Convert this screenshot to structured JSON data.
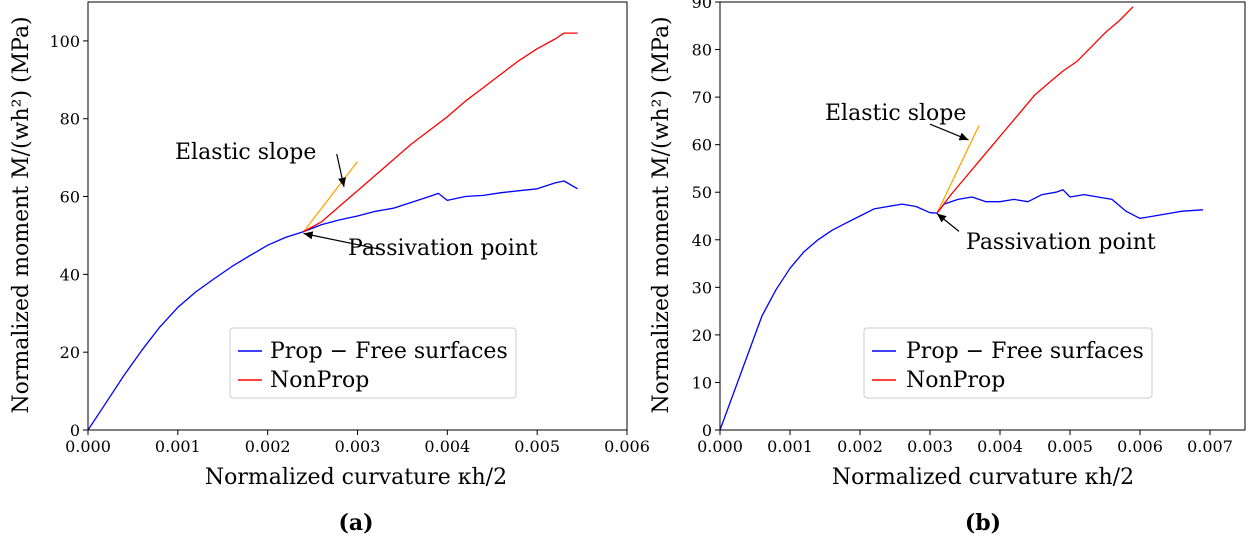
{
  "chart_data": [
    {
      "type": "line",
      "caption": "(a)",
      "xlabel": "Normalized curvature κh/2",
      "ylabel": "Normalized moment M/(wh²) (MPa)",
      "xlim": [
        0,
        0.006
      ],
      "ylim": [
        0,
        110
      ],
      "xticks": [
        0.0,
        0.001,
        0.002,
        0.003,
        0.004,
        0.005,
        0.006
      ],
      "xtick_labels": [
        "0.000",
        "0.001",
        "0.002",
        "0.003",
        "0.004",
        "0.005",
        "0.006"
      ],
      "yticks": [
        0,
        20,
        40,
        60,
        80,
        100
      ],
      "ytick_labels": [
        "0",
        "20",
        "40",
        "60",
        "80",
        "100"
      ],
      "grid": false,
      "legend_position": "lower-right",
      "series": [
        {
          "name": "Prop − Free surfaces",
          "color": "#0000ff",
          "x": [
            0,
            0.0002,
            0.0004,
            0.0006,
            0.0008,
            0.001,
            0.0012,
            0.0014,
            0.0016,
            0.0018,
            0.002,
            0.0022,
            0.0024,
            0.0026,
            0.0028,
            0.003,
            0.0032,
            0.0034,
            0.0036,
            0.0038,
            0.0039,
            0.004,
            0.0042,
            0.0044,
            0.0046,
            0.0048,
            0.005,
            0.0052,
            0.0053,
            0.00545
          ],
          "y": [
            0,
            7,
            14,
            20.5,
            26.5,
            31.5,
            35.5,
            38.8,
            42,
            44.8,
            47.5,
            49.5,
            51,
            52.8,
            54,
            55,
            56.2,
            57,
            58.5,
            60,
            60.8,
            59,
            60,
            60.3,
            61,
            61.5,
            62,
            63.5,
            64,
            62
          ]
        },
        {
          "name": "NonProp",
          "color": "#ff0000",
          "x": [
            0.0024,
            0.0026,
            0.0028,
            0.003,
            0.0032,
            0.0034,
            0.0036,
            0.0038,
            0.004,
            0.0042,
            0.0044,
            0.0046,
            0.0048,
            0.005,
            0.0052,
            0.0053,
            0.00545
          ],
          "y": [
            51,
            53.5,
            57.5,
            61.5,
            65.5,
            69.5,
            73.5,
            77,
            80.5,
            84.5,
            88,
            91.5,
            95,
            98,
            100.5,
            102,
            102
          ]
        },
        {
          "name": "",
          "color": "#ffa500",
          "x": [
            0.0024,
            0.003
          ],
          "y": [
            51,
            69
          ]
        }
      ],
      "annotations": [
        {
          "text": "Elastic slope",
          "xy": [
            0.00285,
            62.5
          ],
          "xytext": [
            0.0016,
            73
          ]
        },
        {
          "text": "Passivation point",
          "xy": [
            0.0024,
            50.5
          ],
          "xytext": [
            0.0033,
            45
          ]
        }
      ]
    },
    {
      "type": "line",
      "caption": "(b)",
      "xlabel": "Normalized curvature κh/2",
      "ylabel": "Normalized moment M/(wh²) (MPa)",
      "xlim": [
        0,
        0.0075
      ],
      "ylim": [
        0,
        90
      ],
      "xticks": [
        0.0,
        0.001,
        0.002,
        0.003,
        0.004,
        0.005,
        0.006,
        0.007
      ],
      "xtick_labels": [
        "0.000",
        "0.001",
        "0.002",
        "0.003",
        "0.004",
        "0.005",
        "0.006",
        "0.007"
      ],
      "yticks": [
        0,
        10,
        20,
        30,
        40,
        50,
        60,
        70,
        80,
        90
      ],
      "ytick_labels": [
        "0",
        "10",
        "20",
        "30",
        "40",
        "50",
        "60",
        "70",
        "80",
        "90"
      ],
      "grid": false,
      "legend_position": "lower-right",
      "series": [
        {
          "name": "Prop − Free surfaces",
          "color": "#0000ff",
          "x": [
            0,
            0.0002,
            0.0004,
            0.0006,
            0.0008,
            0.001,
            0.0012,
            0.0014,
            0.0016,
            0.0018,
            0.002,
            0.0022,
            0.0024,
            0.0026,
            0.0028,
            0.003,
            0.0031,
            0.0032,
            0.0034,
            0.0036,
            0.0038,
            0.004,
            0.0042,
            0.0044,
            0.0046,
            0.0048,
            0.0049,
            0.005,
            0.0052,
            0.0054,
            0.0056,
            0.0058,
            0.006,
            0.0062,
            0.0064,
            0.0066,
            0.0069
          ],
          "y": [
            0,
            8,
            16,
            24,
            29.5,
            34,
            37.5,
            40,
            42,
            43.5,
            45,
            46.5,
            47,
            47.5,
            47,
            45.7,
            45.6,
            47.5,
            48.5,
            49,
            48,
            48,
            48.5,
            48,
            49.5,
            50,
            50.5,
            49,
            49.5,
            49,
            48.5,
            46,
            44.5,
            45,
            45.5,
            46,
            46.3
          ]
        },
        {
          "name": "NonProp",
          "color": "#ff0000",
          "x": [
            0.0031,
            0.0033,
            0.0035,
            0.0037,
            0.0039,
            0.0041,
            0.0043,
            0.0045,
            0.0047,
            0.0049,
            0.0051,
            0.0053,
            0.0055,
            0.0057,
            0.0059
          ],
          "y": [
            45.6,
            49.5,
            53,
            56.5,
            60,
            63.5,
            67,
            70.5,
            73,
            75.5,
            77.5,
            80.5,
            83.5,
            86,
            89
          ]
        },
        {
          "name": "",
          "color": "#ffa500",
          "x": [
            0.0031,
            0.0037
          ],
          "y": [
            45.6,
            64
          ]
        }
      ],
      "annotations": [
        {
          "text": "Elastic slope",
          "xy": [
            0.00355,
            61
          ],
          "xytext": [
            0.0015,
            66
          ]
        },
        {
          "text": "Passivation point",
          "xy": [
            0.0031,
            45.5
          ],
          "xytext": [
            0.0035,
            40.5
          ]
        }
      ]
    }
  ]
}
